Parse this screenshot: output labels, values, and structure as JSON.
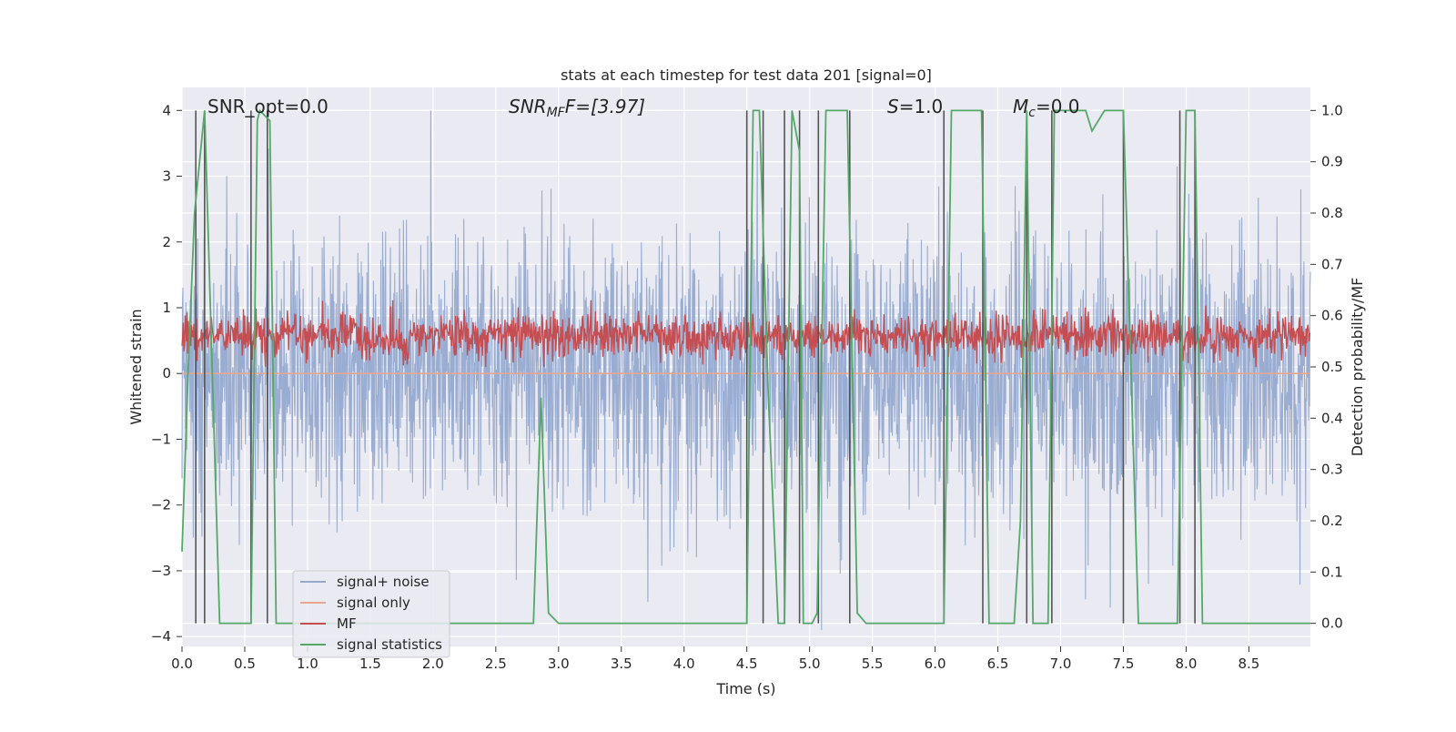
{
  "chart_data": {
    "type": "line",
    "title": "stats at each timestep for test data 201 [signal=0]",
    "xlabel": "Time (s)",
    "ylabel_left": "Whitened strain",
    "ylabel_right": "Detection probability/MF",
    "xlim": [
      0,
      8.99
    ],
    "ylim_left": [
      -4.15,
      4.35
    ],
    "ylim_right": [
      -0.045,
      1.045
    ],
    "x_ticks": [
      "0.0",
      "0.5",
      "1.0",
      "1.5",
      "2.0",
      "2.5",
      "3.0",
      "3.5",
      "4.0",
      "4.5",
      "5.0",
      "5.5",
      "6.0",
      "6.5",
      "7.0",
      "7.5",
      "8.0",
      "8.5"
    ],
    "y_left_ticks": [
      "4",
      "3",
      "2",
      "1",
      "0",
      "−1",
      "−2",
      "−3",
      "−4"
    ],
    "y_right_ticks": [
      "1.0",
      "0.9",
      "0.8",
      "0.7",
      "0.6",
      "0.5",
      "0.4",
      "0.3",
      "0.2",
      "0.1",
      "0.0"
    ],
    "grid": true,
    "annotations": {
      "snr_opt": "SNR_opt=0.0",
      "snr_mf": "SNR",
      "snr_mf_sub": "MF",
      "snr_mf_tail": "F=[3.97]",
      "s_var": "S",
      "s_val": "=1.0",
      "mc_var": "M",
      "mc_sub": "c",
      "mc_val": "=0.0"
    },
    "legend": {
      "placement": "lower-left",
      "entries": [
        "signal+ noise",
        "signal only",
        "MF",
        "signal statistics"
      ]
    },
    "series": [
      {
        "name": "signal+ noise",
        "color": "#95a9cf",
        "kind": "noise",
        "sigma": 1.0
      },
      {
        "name": "signal only",
        "color": "#eaa68a",
        "kind": "flat",
        "value": 0.0
      },
      {
        "name": "MF",
        "color": "#c44e52",
        "kind": "mf",
        "range": [
          0.5,
          0.62
        ]
      },
      {
        "name": "signal statistics",
        "color": "#55a868",
        "axis": "right",
        "x": [
          0.0,
          0.05,
          0.1,
          0.18,
          0.3,
          0.55,
          0.6,
          0.62,
          0.7,
          0.75,
          2.8,
          2.86,
          2.92,
          3.0,
          4.5,
          4.55,
          4.6,
          4.67,
          4.75,
          4.8,
          4.86,
          4.92,
          4.95,
          5.02,
          5.06,
          5.13,
          5.3,
          5.38,
          5.45,
          6.07,
          6.13,
          6.37,
          6.43,
          6.63,
          6.68,
          6.73,
          6.78,
          6.84,
          6.9,
          6.95,
          7.2,
          7.25,
          7.35,
          7.5,
          7.62,
          7.93,
          8.0,
          8.07,
          8.13,
          8.99
        ],
        "y": [
          0.14,
          0.5,
          0.8,
          1.0,
          0.0,
          0.0,
          0.98,
          1.0,
          0.98,
          0.0,
          0.0,
          0.44,
          0.02,
          0.0,
          0.0,
          1.0,
          1.0,
          0.45,
          0.0,
          0.0,
          1.0,
          0.92,
          0.0,
          0.0,
          0.02,
          1.0,
          1.0,
          0.02,
          0.0,
          0.0,
          1.0,
          1.0,
          0.0,
          0.0,
          0.2,
          1.0,
          0.0,
          0.0,
          0.0,
          1.0,
          1.0,
          0.96,
          1.0,
          1.0,
          0.0,
          0.0,
          1.0,
          1.0,
          0.0,
          0.0
        ]
      }
    ],
    "event_markers": {
      "color": "#555555",
      "axis": "right",
      "x": [
        0.11,
        0.18,
        0.55,
        0.68,
        4.5,
        4.63,
        4.8,
        4.92,
        5.07,
        5.32,
        6.07,
        6.38,
        6.73,
        6.93,
        7.5,
        7.95,
        8.07
      ],
      "y_range": [
        0.0,
        1.0
      ]
    }
  }
}
